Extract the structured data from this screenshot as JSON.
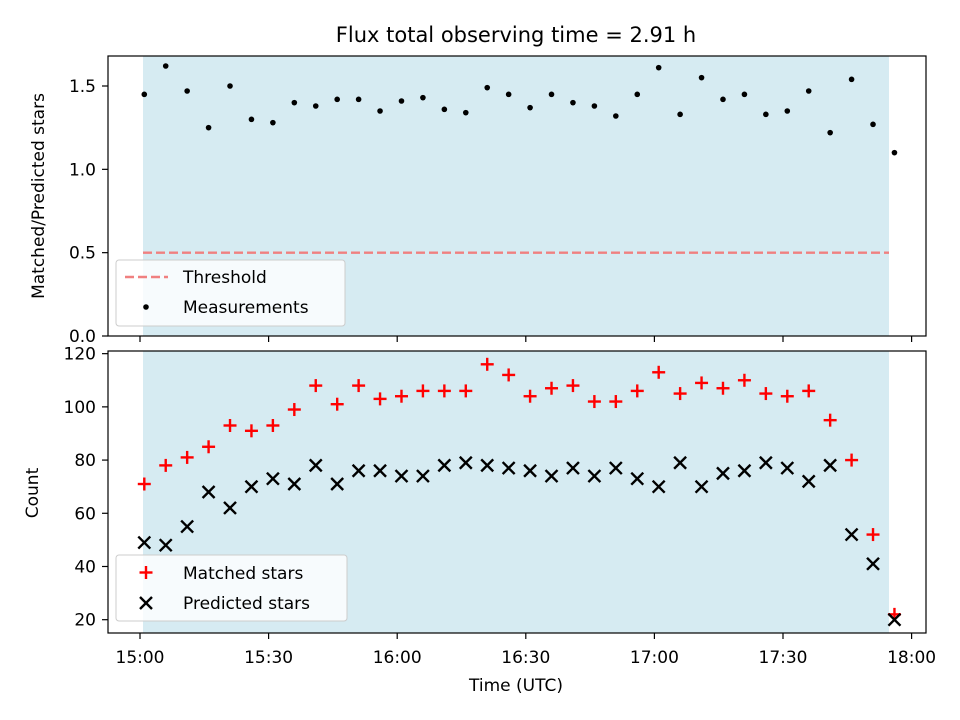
{
  "chart_data": [
    {
      "type": "scatter",
      "title": "Flux total observing time = 2.91 h",
      "ylabel": "Matched/Predicted stars",
      "ylim": [
        0,
        1.68
      ],
      "yticks": [
        0.0,
        0.5,
        1.0,
        1.5
      ],
      "ytick_labels": [
        "0.0",
        "0.5",
        "1.0",
        "1.5"
      ],
      "threshold": 0.5,
      "legend": {
        "placement": "lower-left",
        "threshold_label": "Threshold",
        "measurements_label": "Measurements"
      },
      "x": [
        "15:01",
        "15:06",
        "15:11",
        "15:16",
        "15:21",
        "15:26",
        "15:31",
        "15:36",
        "15:41",
        "15:46",
        "15:51",
        "15:56",
        "16:01",
        "16:06",
        "16:11",
        "16:16",
        "16:21",
        "16:26",
        "16:31",
        "16:36",
        "16:41",
        "16:46",
        "16:51",
        "16:56",
        "17:01",
        "17:06",
        "17:11",
        "17:16",
        "17:21",
        "17:26",
        "17:31",
        "17:36",
        "17:41",
        "17:46",
        "17:51",
        "17:56"
      ],
      "series": [
        {
          "name": "Measurements",
          "values": [
            1.45,
            1.62,
            1.47,
            1.25,
            1.5,
            1.3,
            1.28,
            1.4,
            1.38,
            1.42,
            1.42,
            1.35,
            1.41,
            1.43,
            1.36,
            1.34,
            1.49,
            1.45,
            1.37,
            1.45,
            1.4,
            1.38,
            1.32,
            1.45,
            1.61,
            1.33,
            1.55,
            1.42,
            1.45,
            1.33,
            1.35,
            1.47,
            1.22,
            1.54,
            1.27,
            1.1
          ]
        }
      ]
    },
    {
      "type": "scatter",
      "xlabel": "Time (UTC)",
      "ylabel": "Count",
      "ylim": [
        15,
        121
      ],
      "yticks": [
        20,
        40,
        60,
        80,
        100,
        120
      ],
      "ytick_labels": [
        "20",
        "40",
        "60",
        "80",
        "100",
        "120"
      ],
      "xtick_labels": [
        "15:00",
        "15:30",
        "16:00",
        "16:30",
        "17:00",
        "17:30",
        "18:00"
      ],
      "legend": {
        "placement": "lower-left"
      },
      "x": [
        "15:01",
        "15:06",
        "15:11",
        "15:16",
        "15:21",
        "15:26",
        "15:31",
        "15:36",
        "15:41",
        "15:46",
        "15:51",
        "15:56",
        "16:01",
        "16:06",
        "16:11",
        "16:16",
        "16:21",
        "16:26",
        "16:31",
        "16:36",
        "16:41",
        "16:46",
        "16:51",
        "16:56",
        "17:01",
        "17:06",
        "17:11",
        "17:16",
        "17:21",
        "17:26",
        "17:31",
        "17:36",
        "17:41",
        "17:46",
        "17:51",
        "17:56"
      ],
      "series": [
        {
          "name": "Matched stars",
          "marker": "plus",
          "color": "#ff0000",
          "values": [
            71,
            78,
            81,
            85,
            93,
            91,
            93,
            99,
            108,
            101,
            108,
            103,
            104,
            106,
            106,
            106,
            116,
            112,
            104,
            107,
            108,
            102,
            102,
            106,
            113,
            105,
            109,
            107,
            110,
            105,
            104,
            106,
            95,
            80,
            52,
            22
          ]
        },
        {
          "name": "Predicted stars",
          "marker": "x",
          "color": "#000000",
          "values": [
            49,
            48,
            55,
            68,
            62,
            70,
            73,
            71,
            78,
            71,
            76,
            76,
            74,
            74,
            78,
            79,
            78,
            77,
            76,
            74,
            77,
            74,
            77,
            73,
            70,
            79,
            70,
            75,
            76,
            79,
            77,
            72,
            78,
            52,
            41,
            20
          ]
        }
      ]
    }
  ],
  "colors": {
    "observing_span": "#add8e6",
    "threshold_line": "#f08080",
    "measurements": "#000000",
    "matched": "#ff0000",
    "predicted": "#000000"
  }
}
